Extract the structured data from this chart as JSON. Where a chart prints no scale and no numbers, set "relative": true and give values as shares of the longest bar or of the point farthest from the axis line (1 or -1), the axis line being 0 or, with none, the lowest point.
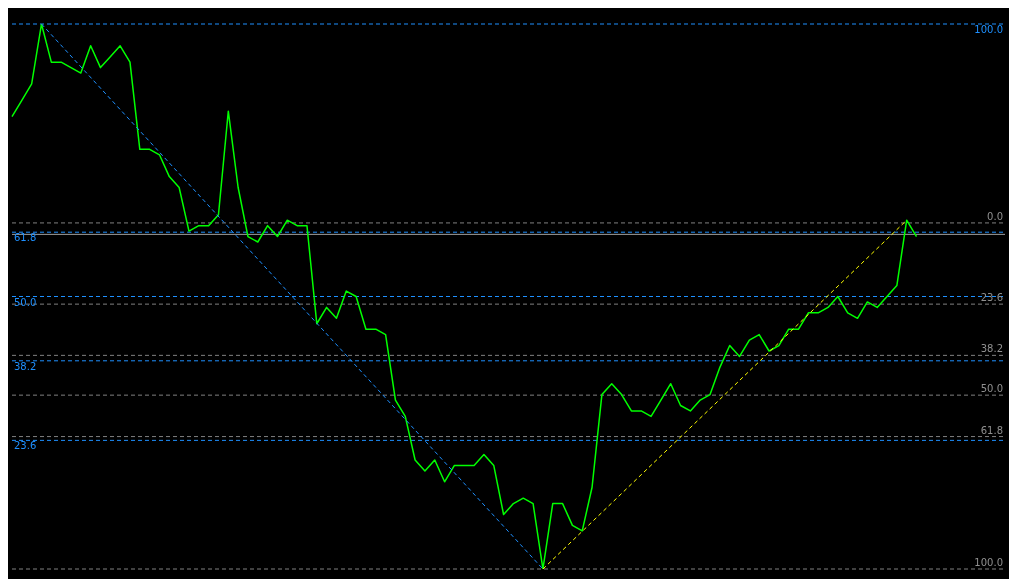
{
  "chart_data": {
    "type": "line",
    "relative": true,
    "categories": [
      null,
      null,
      null,
      null,
      null,
      null,
      null,
      null,
      null,
      null,
      null,
      null,
      null,
      null,
      null,
      null,
      null,
      null,
      null,
      null,
      null,
      null,
      null,
      null,
      null,
      null,
      null,
      null,
      null,
      null,
      null,
      null,
      null,
      null,
      null,
      null,
      null,
      null,
      null,
      null,
      null,
      null,
      null,
      null,
      null,
      null,
      null,
      null,
      null,
      null,
      null,
      null,
      null,
      null,
      null,
      null,
      null,
      null,
      null,
      null,
      null,
      null,
      null,
      null,
      null,
      null,
      null,
      null,
      null,
      null,
      null,
      null,
      null,
      null,
      null,
      null,
      null,
      null,
      null,
      null,
      null,
      null,
      null,
      null,
      null,
      null,
      null,
      null,
      null,
      null,
      null,
      null,
      null,
      null,
      null,
      null,
      null,
      null,
      null,
      null,
      null,
      null
    ],
    "series": [
      {
        "color": "#00ff00",
        "line_style": "solid",
        "values": [
          0.83,
          0.86,
          0.89,
          1.0,
          0.93,
          0.93,
          0.92,
          0.91,
          0.96,
          0.92,
          0.94,
          0.96,
          0.93,
          0.77,
          0.77,
          0.76,
          0.72,
          0.7,
          0.62,
          0.63,
          0.63,
          0.65,
          0.84,
          0.7,
          0.61,
          0.6,
          0.63,
          0.61,
          0.64,
          0.63,
          0.63,
          0.45,
          0.48,
          0.46,
          0.51,
          0.5,
          0.44,
          0.44,
          0.43,
          0.31,
          0.28,
          0.2,
          0.18,
          0.2,
          0.16,
          0.19,
          0.19,
          0.19,
          0.21,
          0.19,
          0.1,
          0.12,
          0.13,
          0.12,
          0,
          0.12,
          0.12,
          0.08,
          0.07,
          0.15,
          0.32,
          0.34,
          0.32,
          0.29,
          0.29,
          0.28,
          0.31,
          0.34,
          0.3,
          0.29,
          0.31,
          0.32,
          0.37,
          0.41,
          0.39,
          0.42,
          0.43,
          0.4,
          0.41,
          0.44,
          0.44,
          0.47,
          0.47,
          0.48,
          0.5,
          0.47,
          0.46,
          0.49,
          0.48,
          0.5,
          0.52,
          0.64,
          0.61,
          null,
          null,
          null,
          null,
          null,
          null,
          null,
          null,
          null
        ]
      },
      {
        "color": "#1e90ff",
        "line_style": "dashed",
        "values": [
          null,
          null,
          null,
          1,
          null,
          null,
          null,
          null,
          null,
          null,
          null,
          null,
          null,
          null,
          null,
          null,
          null,
          null,
          null,
          null,
          null,
          null,
          null,
          null,
          null,
          null,
          null,
          null,
          null,
          null,
          null,
          null,
          null,
          null,
          null,
          null,
          null,
          null,
          null,
          null,
          null,
          null,
          null,
          null,
          null,
          null,
          null,
          null,
          null,
          null,
          null,
          null,
          null,
          null,
          0,
          null,
          null,
          null,
          null,
          null,
          null,
          null,
          null,
          null,
          null,
          null,
          null,
          null,
          null,
          null,
          null,
          null,
          null,
          null,
          null,
          null,
          null,
          null,
          null,
          null,
          null,
          null,
          null,
          null,
          null,
          null,
          null,
          null,
          null,
          null,
          null,
          null,
          null,
          null,
          null,
          null,
          null,
          null,
          null,
          null,
          null,
          null
        ]
      },
      {
        "color": "#ffff00",
        "line_style": "dashed",
        "values": [
          null,
          null,
          null,
          null,
          null,
          null,
          null,
          null,
          null,
          null,
          null,
          null,
          null,
          null,
          null,
          null,
          null,
          null,
          null,
          null,
          null,
          null,
          null,
          null,
          null,
          null,
          null,
          null,
          null,
          null,
          null,
          null,
          null,
          null,
          null,
          null,
          null,
          null,
          null,
          null,
          null,
          null,
          null,
          null,
          null,
          null,
          null,
          null,
          null,
          null,
          null,
          null,
          null,
          null,
          0,
          null,
          null,
          null,
          null,
          null,
          null,
          null,
          null,
          null,
          null,
          null,
          null,
          null,
          null,
          null,
          null,
          null,
          null,
          null,
          null,
          null,
          null,
          null,
          null,
          null,
          null,
          null,
          null,
          null,
          null,
          null,
          null,
          null,
          null,
          null,
          null,
          0.64,
          null,
          null,
          null,
          null,
          null,
          null,
          null,
          null,
          null,
          null
        ]
      }
    ],
    "ref_lines": [
      {
        "axis": "y",
        "value": 1,
        "label": "100.0",
        "color": "#1e90ff",
        "line_style": "dashed"
      },
      {
        "axis": "y",
        "value": 0.618,
        "label": "61.8",
        "color": "#1e90ff",
        "line_style": "dashed"
      },
      {
        "axis": "y",
        "value": 0.5,
        "label": "50.0",
        "color": "#1e90ff",
        "line_style": "dashed"
      },
      {
        "axis": "y",
        "value": 0.382,
        "label": "38.2",
        "color": "#1e90ff",
        "line_style": "dashed"
      },
      {
        "axis": "y",
        "value": 0.236,
        "label": "23.6",
        "color": "#1e90ff",
        "line_style": "dashed"
      },
      {
        "axis": "y",
        "value": 0.614,
        "color": "#a0a0a0",
        "line_style": "solid"
      },
      {
        "axis": "y",
        "value": 0.635,
        "color": "#808080",
        "line_style": "dashed"
      },
      {
        "axis": "y",
        "value": 0.486,
        "color": "#808080",
        "line_style": "dashed"
      },
      {
        "axis": "y",
        "value": 0.392,
        "color": "#808080",
        "line_style": "dashed"
      },
      {
        "axis": "y",
        "value": 0.319,
        "color": "#808080",
        "line_style": "dashed"
      },
      {
        "axis": "y",
        "value": 0.243,
        "color": "#808080",
        "line_style": "dashed"
      },
      {
        "axis": "y",
        "value": 0,
        "color": "#808080",
        "line_style": "dashed"
      }
    ],
    "annotations": [
      {
        "text": "0.0",
        "y": 0.635
      },
      {
        "text": "23.6",
        "y": 0.486
      },
      {
        "text": "38.2",
        "y": 0.392
      },
      {
        "text": "50.0",
        "y": 0.319
      },
      {
        "text": "61.8",
        "y": 0.243
      },
      {
        "text": "100.0",
        "y": 0
      }
    ]
  }
}
